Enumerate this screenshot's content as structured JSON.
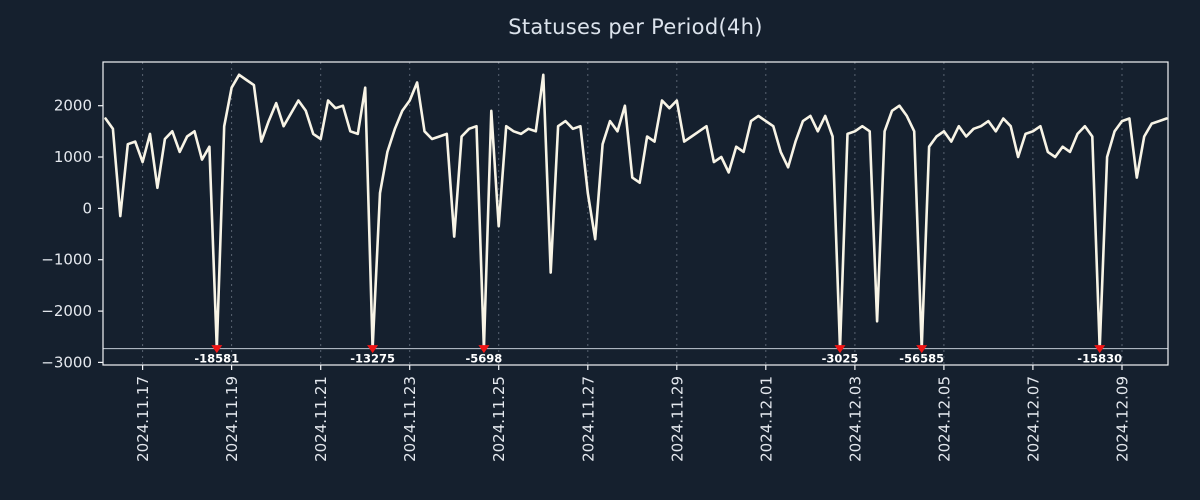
{
  "chart_data": {
    "type": "line",
    "title": "Statuses per Period(4h)",
    "x_tick_labels": [
      "2024.11.17",
      "2024.11.19",
      "2024.11.21",
      "2024.11.23",
      "2024.11.25",
      "2024.11.27",
      "2024.11.29",
      "2024.12.01",
      "2024.12.03",
      "2024.12.05",
      "2024.12.07",
      "2024.12.09"
    ],
    "x_tick_indices": [
      5,
      17,
      29,
      41,
      53,
      65,
      77,
      89,
      101,
      113,
      125,
      137
    ],
    "y_ticks": [
      2000,
      1000,
      0,
      -1000,
      -2000,
      -3000
    ],
    "y_tick_labels": [
      "2000",
      "1000",
      "0",
      "−1000",
      "−2000",
      "−3000"
    ],
    "ylim": [
      -3050,
      2850
    ],
    "clip_level": -2730,
    "grid": "vertical-dashed",
    "legend": null,
    "series": [
      {
        "name": "statuses",
        "color": "#f8f4e6",
        "values": [
          1750,
          1550,
          -150,
          1250,
          1300,
          900,
          1450,
          400,
          1350,
          1500,
          1100,
          1400,
          1500,
          950,
          1200,
          -18581,
          1600,
          2350,
          2600,
          2500,
          2400,
          1300,
          1700,
          2050,
          1600,
          1850,
          2100,
          1900,
          1450,
          1350,
          2100,
          1950,
          2000,
          1500,
          1450,
          2350,
          -13275,
          300,
          1100,
          1550,
          1900,
          2100,
          2450,
          1500,
          1350,
          1400,
          1450,
          -550,
          1400,
          1550,
          1600,
          -5698,
          1900,
          -350,
          1600,
          1500,
          1450,
          1550,
          1500,
          2600,
          -1250,
          1600,
          1700,
          1550,
          1600,
          300,
          -600,
          1250,
          1700,
          1500,
          2000,
          600,
          500,
          1400,
          1300,
          2100,
          1950,
          2100,
          1300,
          1400,
          1500,
          1600,
          900,
          1000,
          700,
          1200,
          1100,
          1700,
          1800,
          1700,
          1600,
          1100,
          800,
          1300,
          1700,
          1800,
          1500,
          1800,
          1400,
          -3025,
          1450,
          1500,
          1600,
          1500,
          -2200,
          1500,
          1900,
          2000,
          1800,
          1500,
          -56585,
          1200,
          1400,
          1500,
          1300,
          1600,
          1400,
          1550,
          1600,
          1700,
          1500,
          1750,
          1600,
          1000,
          1450,
          1500,
          1600,
          1100,
          1000,
          1200,
          1100,
          1450,
          1600,
          1400,
          -15830,
          1000,
          1500,
          1700,
          1750,
          600,
          1400,
          1650,
          1700,
          1750
        ]
      }
    ],
    "annotations": [
      {
        "index": 15,
        "label": "-18581",
        "value": -18581
      },
      {
        "index": 36,
        "label": "-13275",
        "value": -13275
      },
      {
        "index": 51,
        "label": "-5698",
        "value": -5698
      },
      {
        "index": 99,
        "label": "-3025",
        "value": -3025
      },
      {
        "index": 110,
        "label": "-56585",
        "value": -56585
      },
      {
        "index": 134,
        "label": "-15830",
        "value": -15830
      }
    ],
    "colors": {
      "background": "#15202e",
      "plot_border": "#f2f4f7",
      "grid": "#9aa3b2",
      "line": "#f8f4e6",
      "marker": "#f01515",
      "text": "#e4e8ee",
      "clip_line": "#c2c9d4",
      "annotation_text": "#ffffff"
    }
  }
}
